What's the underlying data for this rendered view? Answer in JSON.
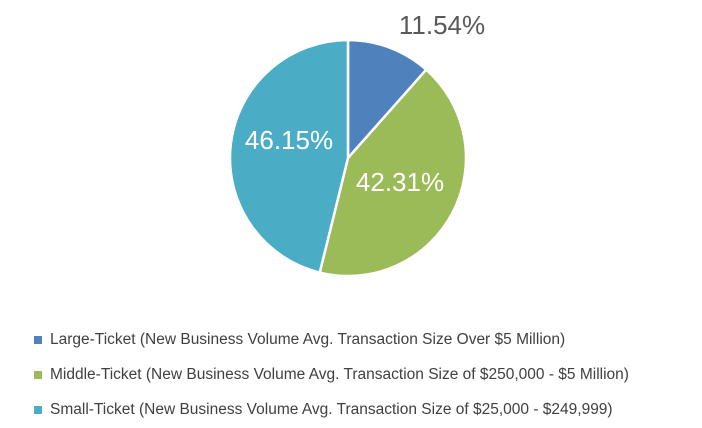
{
  "chart_data": {
    "type": "pie",
    "categories": [
      "Large-Ticket (New Business Volume Avg. Transaction Size Over $5 Million)",
      "Middle-Ticket (New Business Volume Avg. Transaction Size of $250,000 - $5 Million)",
      "Small-Ticket (New Business Volume Avg. Transaction Size of $25,000 - $249,999)"
    ],
    "values": [
      11.54,
      42.31,
      46.15
    ],
    "data_labels": [
      "11.54%",
      "42.31%",
      "46.15%"
    ],
    "colors": [
      "#4f81bd",
      "#9bbb59",
      "#4bacc6"
    ],
    "legend_position": "bottom",
    "start_angle": "12 o'clock",
    "direction": "clockwise"
  }
}
